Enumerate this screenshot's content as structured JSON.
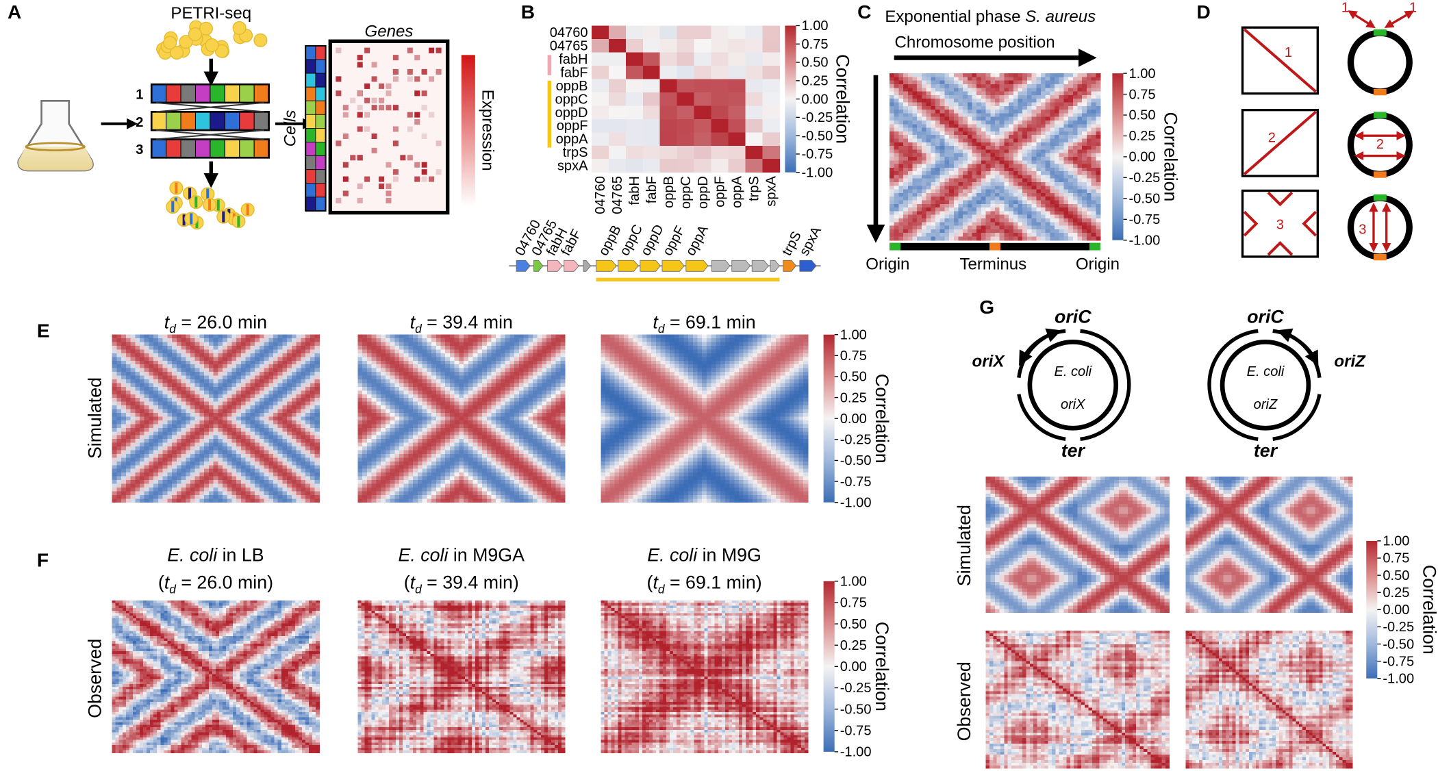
{
  "panels": {
    "A": {
      "label": "A",
      "method": "PETRI-seq",
      "rounds": [
        "1",
        "2",
        "3"
      ],
      "genes": "Genes",
      "cells": "Cells",
      "expression": "Expression"
    },
    "B": {
      "label": "B",
      "genes": [
        "04760",
        "04765",
        "fabH",
        "fabF",
        "oppB",
        "oppC",
        "oppD",
        "oppF",
        "oppA",
        "trpS",
        "spxA"
      ],
      "colorbar": {
        "title": "Correlation",
        "ticks": [
          "1.00",
          "0.75",
          "0.50",
          "0.25",
          "0.00",
          "-0.25",
          "-0.50",
          "-0.75",
          "-1.00"
        ]
      }
    },
    "C": {
      "label": "C",
      "title": "Exponential phase ",
      "organism": "S. aureus",
      "x_arrow": "Chromosome position",
      "positions": [
        "Origin",
        "Terminus",
        "Origin"
      ],
      "colorbar": {
        "title": "Correlation",
        "ticks": [
          "1.00",
          "0.75",
          "0.50",
          "0.25",
          "0.00",
          "-0.25",
          "-0.50",
          "-0.75",
          "-1.00"
        ]
      }
    },
    "D": {
      "label": "D",
      "numbers": [
        "1",
        "2",
        "3"
      ]
    },
    "E": {
      "label": "E",
      "row_label": "Simulated",
      "titles": [
        {
          "var": "t",
          "sub": "d",
          "rest": " = 26.0 min"
        },
        {
          "var": "t",
          "sub": "d",
          "rest": " = 39.4 min"
        },
        {
          "var": "t",
          "sub": "d",
          "rest": " = 69.1 min"
        }
      ],
      "colorbar": {
        "title": "Correlation",
        "ticks": [
          "1.00",
          "0.75",
          "0.50",
          "0.25",
          "0.00",
          "-0.25",
          "-0.50",
          "-0.75",
          "-1.00"
        ]
      }
    },
    "F": {
      "label": "F",
      "row_label": "Observed",
      "titles": [
        {
          "organism": "E. coli",
          "medium": " in LB",
          "open": "(",
          "var": "t",
          "sub": "d",
          "rest": " = 26.0 min)"
        },
        {
          "organism": "E. coli",
          "medium": " in M9GA",
          "open": "(",
          "var": "t",
          "sub": "d",
          "rest": " = 39.4 min)"
        },
        {
          "organism": "E. coli",
          "medium": " in M9G",
          "open": "(",
          "var": "t",
          "sub": "d",
          "rest": " = 69.1 min)"
        }
      ],
      "colorbar": {
        "title": "Correlation",
        "ticks": [
          "1.00",
          "0.75",
          "0.50",
          "0.25",
          "0.00",
          "-0.25",
          "-0.50",
          "-0.75",
          "-1.00"
        ]
      }
    },
    "G": {
      "label": "G",
      "rows": [
        "Simulated",
        "Observed"
      ],
      "strains": [
        {
          "ori": "oriC",
          "alt": "oriX",
          "ter": "ter",
          "organism": "E. coli"
        },
        {
          "ori": "oriC",
          "alt": "oriZ",
          "ter": "ter",
          "organism": "E. coli"
        }
      ],
      "colorbar": {
        "title": "Correlation",
        "ticks": [
          "1.00",
          "0.75",
          "0.50",
          "0.25",
          "0.00",
          "-0.25",
          "-0.50",
          "-0.75",
          "-1.00"
        ]
      }
    }
  }
}
